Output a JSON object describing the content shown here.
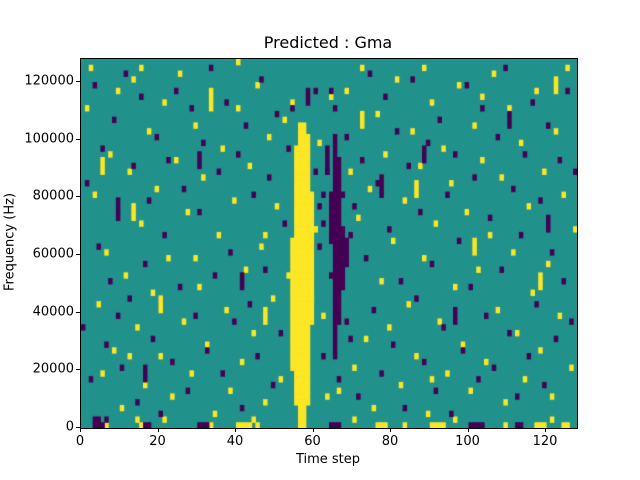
{
  "title": "Predicted : Gma",
  "chart_data": {
    "type": "heatmap",
    "title": "Predicted : Gma",
    "xlabel": "Time step",
    "ylabel": "Frequency (Hz)",
    "xlim": [
      0,
      128
    ],
    "ylim": [
      0,
      128000
    ],
    "xticks": [
      0,
      20,
      40,
      60,
      80,
      100,
      120
    ],
    "yticks": [
      0,
      20000,
      40000,
      60000,
      80000,
      100000,
      120000
    ],
    "grid": {
      "cols": 128,
      "rows": 64,
      "hz_per_row": 2000
    },
    "legend": null,
    "colors": {
      "base": "#21918c",
      "high": "#fde725",
      "low": "#440154",
      "axis": "#000000",
      "background": "#ffffff"
    },
    "value_levels": {
      "low": 0,
      "base": 1,
      "high": 2
    },
    "yellow_runs": [
      [
        54,
        10,
        32
      ],
      [
        55,
        4,
        48
      ],
      [
        56,
        2,
        52
      ],
      [
        57,
        2,
        52
      ],
      [
        58,
        4,
        50
      ],
      [
        59,
        18,
        40
      ],
      [
        13,
        36,
        38
      ],
      [
        33,
        55,
        57
      ],
      [
        20,
        20,
        22
      ],
      [
        47,
        18,
        20
      ],
      [
        86,
        40,
        42
      ],
      [
        101,
        30,
        32
      ],
      [
        118,
        24,
        26
      ],
      [
        122,
        58,
        60
      ],
      [
        5,
        44,
        46
      ],
      [
        72,
        52,
        54
      ]
    ],
    "purple_runs": [
      [
        65,
        12,
        50
      ],
      [
        66,
        18,
        46
      ],
      [
        67,
        24,
        34
      ],
      [
        64,
        32,
        40
      ],
      [
        63,
        44,
        48
      ],
      [
        68,
        28,
        32
      ],
      [
        9,
        36,
        39
      ],
      [
        30,
        45,
        47
      ],
      [
        41,
        24,
        26
      ],
      [
        77,
        40,
        43
      ],
      [
        96,
        18,
        20
      ],
      [
        110,
        52,
        54
      ],
      [
        120,
        34,
        36
      ],
      [
        16,
        8,
        10
      ],
      [
        58,
        56,
        58
      ],
      [
        88,
        46,
        48
      ]
    ],
    "yellow_cells": [
      [
        1,
        55
      ],
      [
        2,
        62
      ],
      [
        3,
        40
      ],
      [
        4,
        21
      ],
      [
        5,
        9
      ],
      [
        6,
        30
      ],
      [
        7,
        47
      ],
      [
        8,
        13
      ],
      [
        9,
        58
      ],
      [
        10,
        3
      ],
      [
        11,
        26
      ],
      [
        12,
        44
      ],
      [
        13,
        60
      ],
      [
        14,
        17
      ],
      [
        15,
        35
      ],
      [
        16,
        7
      ],
      [
        17,
        51
      ],
      [
        18,
        23
      ],
      [
        19,
        41
      ],
      [
        20,
        12
      ],
      [
        21,
        56
      ],
      [
        22,
        29
      ],
      [
        23,
        5
      ],
      [
        24,
        46
      ],
      [
        25,
        61
      ],
      [
        26,
        18
      ],
      [
        27,
        37
      ],
      [
        28,
        9
      ],
      [
        29,
        52
      ],
      [
        30,
        24
      ],
      [
        31,
        43
      ],
      [
        32,
        14
      ],
      [
        33,
        58
      ],
      [
        34,
        2
      ],
      [
        35,
        33
      ],
      [
        36,
        48
      ],
      [
        37,
        20
      ],
      [
        38,
        6
      ],
      [
        39,
        39
      ],
      [
        40,
        55
      ],
      [
        41,
        11
      ],
      [
        42,
        27
      ],
      [
        43,
        45
      ],
      [
        44,
        16
      ],
      [
        45,
        59
      ],
      [
        46,
        31
      ],
      [
        47,
        4
      ],
      [
        48,
        50
      ],
      [
        49,
        22
      ],
      [
        50,
        38
      ],
      [
        51,
        8
      ],
      [
        52,
        53
      ],
      [
        53,
        26
      ],
      [
        54,
        56
      ],
      [
        60,
        34
      ],
      [
        61,
        49
      ],
      [
        62,
        19
      ],
      [
        63,
        5
      ],
      [
        64,
        57
      ],
      [
        68,
        58
      ],
      [
        69,
        44
      ],
      [
        70,
        10
      ],
      [
        71,
        36
      ],
      [
        72,
        62
      ],
      [
        73,
        15
      ],
      [
        74,
        41
      ],
      [
        75,
        3
      ],
      [
        76,
        54
      ],
      [
        77,
        25
      ],
      [
        78,
        47
      ],
      [
        79,
        17
      ],
      [
        80,
        32
      ],
      [
        81,
        60
      ],
      [
        82,
        7
      ],
      [
        83,
        39
      ],
      [
        84,
        21
      ],
      [
        85,
        51
      ],
      [
        86,
        12
      ],
      [
        87,
        45
      ],
      [
        88,
        29
      ],
      [
        89,
        2
      ],
      [
        90,
        56
      ],
      [
        91,
        35
      ],
      [
        92,
        18
      ],
      [
        93,
        48
      ],
      [
        94,
        9
      ],
      [
        95,
        42
      ],
      [
        96,
        24
      ],
      [
        97,
        59
      ],
      [
        98,
        14
      ],
      [
        99,
        37
      ],
      [
        100,
        6
      ],
      [
        101,
        52
      ],
      [
        102,
        27
      ],
      [
        103,
        46
      ],
      [
        104,
        11
      ],
      [
        105,
        33
      ],
      [
        106,
        61
      ],
      [
        107,
        20
      ],
      [
        108,
        43
      ],
      [
        109,
        4
      ],
      [
        110,
        55
      ],
      [
        111,
        30
      ],
      [
        112,
        16
      ],
      [
        113,
        49
      ],
      [
        114,
        8
      ],
      [
        115,
        38
      ],
      [
        116,
        23
      ],
      [
        117,
        58
      ],
      [
        118,
        13
      ],
      [
        119,
        44
      ],
      [
        120,
        28
      ],
      [
        121,
        5
      ],
      [
        122,
        51
      ],
      [
        123,
        19
      ],
      [
        124,
        40
      ],
      [
        125,
        62
      ],
      [
        126,
        10
      ],
      [
        127,
        34
      ],
      [
        6,
        0
      ],
      [
        21,
        1
      ],
      [
        33,
        0
      ],
      [
        44,
        1
      ],
      [
        57,
        0
      ],
      [
        70,
        1
      ],
      [
        83,
        0
      ],
      [
        96,
        1
      ],
      [
        109,
        0
      ],
      [
        121,
        1
      ],
      [
        15,
        62
      ],
      [
        40,
        63
      ],
      [
        88,
        62
      ],
      [
        12,
        12
      ],
      [
        47,
        33
      ],
      [
        90,
        8
      ],
      [
        103,
        57
      ],
      [
        29,
        29
      ],
      [
        66,
        6
      ],
      [
        59,
        22
      ],
      [
        40,
        0
      ],
      [
        41,
        0
      ],
      [
        42,
        0
      ],
      [
        43,
        0
      ],
      [
        45,
        0
      ],
      [
        76,
        0
      ],
      [
        77,
        0
      ],
      [
        78,
        0
      ],
      [
        90,
        0
      ],
      [
        91,
        0
      ],
      [
        92,
        0
      ],
      [
        93,
        0
      ],
      [
        117,
        0
      ],
      [
        118,
        0
      ],
      [
        119,
        0
      ],
      [
        124,
        0
      ],
      [
        125,
        0
      ],
      [
        14,
        1
      ],
      [
        15,
        0
      ],
      [
        56,
        0
      ],
      [
        56,
        1
      ],
      [
        57,
        1
      ]
    ],
    "purple_cells": [
      [
        0,
        17
      ],
      [
        1,
        42
      ],
      [
        2,
        8
      ],
      [
        3,
        59
      ],
      [
        4,
        31
      ],
      [
        5,
        48
      ],
      [
        6,
        14
      ],
      [
        7,
        25
      ],
      [
        8,
        53
      ],
      [
        9,
        19
      ],
      [
        10,
        10
      ],
      [
        11,
        61
      ],
      [
        12,
        22
      ],
      [
        13,
        45
      ],
      [
        14,
        4
      ],
      [
        15,
        57
      ],
      [
        16,
        28
      ],
      [
        17,
        39
      ],
      [
        18,
        15
      ],
      [
        19,
        50
      ],
      [
        20,
        2
      ],
      [
        21,
        33
      ],
      [
        22,
        46
      ],
      [
        23,
        11
      ],
      [
        24,
        58
      ],
      [
        25,
        24
      ],
      [
        26,
        41
      ],
      [
        27,
        6
      ],
      [
        28,
        55
      ],
      [
        29,
        19
      ],
      [
        30,
        37
      ],
      [
        31,
        49
      ],
      [
        32,
        13
      ],
      [
        33,
        62
      ],
      [
        34,
        26
      ],
      [
        35,
        44
      ],
      [
        36,
        9
      ],
      [
        37,
        56
      ],
      [
        38,
        30
      ],
      [
        39,
        18
      ],
      [
        40,
        47
      ],
      [
        41,
        3
      ],
      [
        42,
        52
      ],
      [
        43,
        21
      ],
      [
        44,
        40
      ],
      [
        45,
        12
      ],
      [
        46,
        60
      ],
      [
        47,
        27
      ],
      [
        48,
        43
      ],
      [
        49,
        7
      ],
      [
        50,
        54
      ],
      [
        51,
        16
      ],
      [
        52,
        35
      ],
      [
        53,
        48
      ],
      [
        54,
        55
      ],
      [
        60,
        58
      ],
      [
        61,
        31
      ],
      [
        62,
        12
      ],
      [
        63,
        44
      ],
      [
        64,
        26
      ],
      [
        68,
        50
      ],
      [
        69,
        15
      ],
      [
        70,
        38
      ],
      [
        71,
        5
      ],
      [
        72,
        46
      ],
      [
        73,
        29
      ],
      [
        74,
        61
      ],
      [
        75,
        20
      ],
      [
        76,
        42
      ],
      [
        77,
        9
      ],
      [
        78,
        57
      ],
      [
        79,
        34
      ],
      [
        80,
        14
      ],
      [
        81,
        51
      ],
      [
        82,
        25
      ],
      [
        83,
        3
      ],
      [
        84,
        45
      ],
      [
        85,
        60
      ],
      [
        86,
        22
      ],
      [
        87,
        37
      ],
      [
        88,
        11
      ],
      [
        89,
        49
      ],
      [
        90,
        28
      ],
      [
        91,
        6
      ],
      [
        92,
        53
      ],
      [
        93,
        17
      ],
      [
        94,
        40
      ],
      [
        95,
        2
      ],
      [
        96,
        47
      ],
      [
        97,
        32
      ],
      [
        98,
        13
      ],
      [
        99,
        59
      ],
      [
        100,
        24
      ],
      [
        101,
        43
      ],
      [
        102,
        8
      ],
      [
        103,
        55
      ],
      [
        104,
        19
      ],
      [
        105,
        36
      ],
      [
        106,
        10
      ],
      [
        107,
        50
      ],
      [
        108,
        27
      ],
      [
        109,
        62
      ],
      [
        110,
        16
      ],
      [
        111,
        41
      ],
      [
        112,
        5
      ],
      [
        113,
        33
      ],
      [
        114,
        47
      ],
      [
        115,
        12
      ],
      [
        116,
        56
      ],
      [
        117,
        21
      ],
      [
        118,
        39
      ],
      [
        119,
        7
      ],
      [
        120,
        52
      ],
      [
        121,
        30
      ],
      [
        122,
        15
      ],
      [
        123,
        46
      ],
      [
        124,
        25
      ],
      [
        125,
        58
      ],
      [
        126,
        18
      ],
      [
        127,
        44
      ],
      [
        61,
        38
      ],
      [
        62,
        35
      ],
      [
        62,
        40
      ],
      [
        60,
        44
      ],
      [
        67,
        40
      ],
      [
        68,
        18
      ],
      [
        69,
        33
      ],
      [
        66,
        8
      ],
      [
        65,
        55
      ],
      [
        64,
        58
      ],
      [
        3,
        0
      ],
      [
        4,
        0
      ],
      [
        5,
        0
      ],
      [
        6,
        1
      ],
      [
        16,
        0
      ],
      [
        17,
        0
      ],
      [
        30,
        0
      ],
      [
        31,
        0
      ],
      [
        32,
        0
      ],
      [
        64,
        0
      ],
      [
        65,
        0
      ],
      [
        66,
        0
      ],
      [
        100,
        0
      ],
      [
        101,
        0
      ],
      [
        102,
        0
      ],
      [
        103,
        0
      ],
      [
        112,
        0
      ],
      [
        113,
        0
      ],
      [
        3,
        1
      ],
      [
        4,
        1
      ]
    ]
  }
}
